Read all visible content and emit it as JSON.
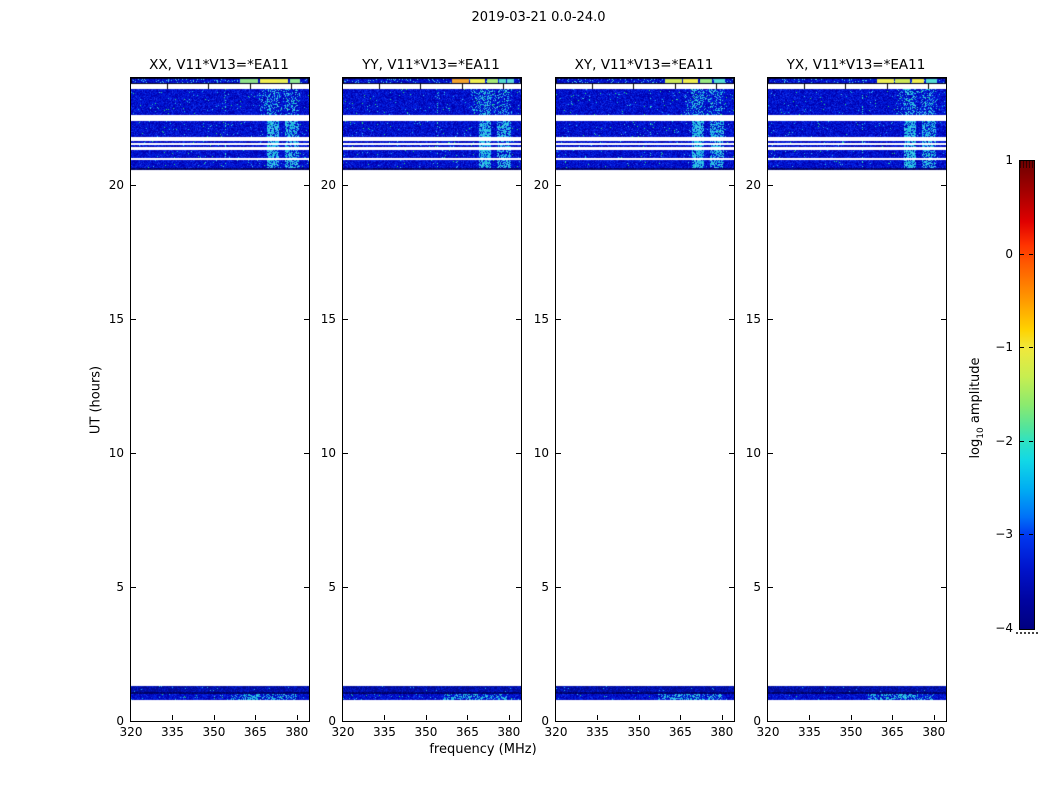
{
  "chart_data": {
    "type": "heatmap",
    "title": "2019-03-21 0.0-24.0",
    "xlabel": "frequency (MHz)",
    "ylabel": "UT (hours)",
    "x_range": [
      320,
      384.4
    ],
    "x_ticks": [
      320,
      335,
      350,
      365,
      380
    ],
    "y_range": [
      0,
      24
    ],
    "y_ticks": [
      0,
      5,
      10,
      15,
      20
    ],
    "panels": [
      {
        "label": "XX, V11*V13=*EA11",
        "strip_segments": [
          [
            359.5,
            366,
            "#8fe08a"
          ],
          [
            366.5,
            372.5,
            "#f0ee52"
          ],
          [
            373,
            377,
            "#e8ee58"
          ],
          [
            377.5,
            381,
            "#8fe792"
          ]
        ]
      },
      {
        "label": "YY, V11*V13=*EA11",
        "strip_segments": [
          [
            359.5,
            365.5,
            "#f0a22e"
          ],
          [
            366,
            371.5,
            "#eeee50"
          ],
          [
            372,
            376,
            "#a6e876"
          ],
          [
            376.5,
            379,
            "#52d8cc"
          ],
          [
            379.5,
            382,
            "#5ad8d8"
          ]
        ]
      },
      {
        "label": "XY, V11*V13=*EA11",
        "strip_segments": [
          [
            359.5,
            365.5,
            "#cce858"
          ],
          [
            366,
            371.5,
            "#eeee50"
          ],
          [
            372,
            376.5,
            "#96e882"
          ],
          [
            377,
            381,
            "#54dcd4"
          ]
        ]
      },
      {
        "label": "YX, V11*V13=*EA11",
        "strip_segments": [
          [
            359.5,
            365.5,
            "#ecee54"
          ],
          [
            366,
            371.5,
            "#cce858"
          ],
          [
            372,
            376.5,
            "#eeee50"
          ],
          [
            377,
            381,
            "#54dcd4"
          ]
        ]
      }
    ],
    "noise_blocks": [
      {
        "ut": [
          23.78,
          24.0
        ],
        "style": "strip"
      },
      {
        "ut": [
          22.62,
          23.58
        ],
        "style": "noise",
        "cols": "mild"
      },
      {
        "ut": [
          21.8,
          22.4
        ],
        "style": "noise",
        "cols": "strong"
      },
      {
        "ut": [
          21.56,
          21.64
        ],
        "style": "noise",
        "cols": "strong"
      },
      {
        "ut": [
          21.41,
          21.49
        ],
        "style": "noise",
        "cols": "strong"
      },
      {
        "ut": [
          21.02,
          21.33
        ],
        "style": "noise",
        "cols": "strong"
      },
      {
        "ut": [
          20.63,
          20.94
        ],
        "style": "noise",
        "cols": "strong"
      },
      {
        "ut": [
          20.56,
          20.63
        ],
        "style": "dark"
      },
      {
        "ut": [
          1.1,
          1.3
        ],
        "style": "darknoise"
      },
      {
        "ut": [
          1.02,
          1.1
        ],
        "style": "dark"
      },
      {
        "ut": [
          0.78,
          1.02
        ],
        "style": "noise",
        "cols": "bottom"
      }
    ],
    "rfi_columns": {
      "mild": [
        {
          "f": [
            366,
            381
          ],
          "a": 0.15
        },
        {
          "f": [
            369,
            373.5
          ],
          "a": 0.3
        },
        {
          "f": [
            375.5,
            380
          ],
          "a": 0.18
        }
      ],
      "strong": [
        {
          "f": [
            369,
            373.5
          ],
          "a": 0.72
        },
        {
          "f": [
            375.5,
            380.5
          ],
          "a": 0.55
        }
      ],
      "bottom": [
        {
          "f": [
            356,
            380
          ],
          "a": 0.32
        },
        {
          "f": [
            362,
            372
          ],
          "a": 0.22
        }
      ]
    },
    "dotted_line_freq": 354,
    "strip_tick_freqs": [
      333,
      348,
      363,
      378
    ],
    "palette": {
      "noise": [
        "#0000b0",
        "#0013cc",
        "#0220e2",
        "#1535ea"
      ],
      "darknoise": [
        "#000a92",
        "#0010b8",
        "#001fd0"
      ],
      "dark": [
        "#000060",
        "#000a86"
      ],
      "accent_cyan": [
        "#22aee8",
        "#45cdea",
        "#18c0d8"
      ],
      "accent_green": "#2ade6e",
      "dotted_cyan": "#35e0c0"
    },
    "colorbar": {
      "label_pre": "log",
      "label_sub": "10",
      "label_post": " amplitude",
      "range": [
        -4,
        1
      ],
      "ticks": [
        "1",
        "0",
        "−1",
        "−2",
        "−3",
        "−4"
      ],
      "tick_values": [
        1,
        0,
        -1,
        -2,
        -3,
        -4
      ],
      "colormap": "jet",
      "stops": [
        [
          0,
          "#6e0000"
        ],
        [
          0.07,
          "#a80000"
        ],
        [
          0.13,
          "#e00000"
        ],
        [
          0.18,
          "#ff3300"
        ],
        [
          0.22,
          "#ff5a00"
        ],
        [
          0.3,
          "#ff9c00"
        ],
        [
          0.36,
          "#ffd200"
        ],
        [
          0.4,
          "#f0e83c"
        ],
        [
          0.46,
          "#c8ee50"
        ],
        [
          0.52,
          "#8cea6e"
        ],
        [
          0.57,
          "#52e49c"
        ],
        [
          0.6,
          "#2ee2c4"
        ],
        [
          0.64,
          "#12d8e6"
        ],
        [
          0.7,
          "#00aef2"
        ],
        [
          0.76,
          "#0072f8"
        ],
        [
          0.8,
          "#0038f0"
        ],
        [
          0.87,
          "#0014cc"
        ],
        [
          0.94,
          "#0004a0"
        ],
        [
          1,
          "#000080"
        ]
      ]
    }
  }
}
